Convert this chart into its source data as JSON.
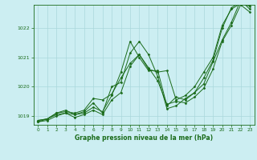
{
  "title": "Graphe pression niveau de la mer (hPa)",
  "bg_color": "#cceef2",
  "grid_color": "#aad8dc",
  "line_color": "#1a6b1a",
  "marker_color": "#1a6b1a",
  "xlim": [
    -0.5,
    23.5
  ],
  "ylim": [
    1018.7,
    1022.8
  ],
  "xticks": [
    0,
    1,
    2,
    3,
    4,
    5,
    6,
    7,
    8,
    9,
    10,
    11,
    12,
    13,
    14,
    15,
    16,
    17,
    18,
    19,
    20,
    21,
    22,
    23
  ],
  "yticks": [
    1019,
    1020,
    1021,
    1022
  ],
  "series": [
    {
      "x": [
        0,
        1,
        2,
        3,
        4,
        5,
        6,
        7,
        8,
        9,
        10,
        11,
        12,
        13,
        14,
        15,
        16,
        17,
        18,
        19,
        20,
        21,
        22,
        23
      ],
      "y": [
        1018.8,
        1018.9,
        1019.05,
        1019.1,
        1019.05,
        1019.1,
        1019.3,
        1019.15,
        1019.7,
        1020.5,
        1021.55,
        1021.0,
        1020.55,
        1020.55,
        1019.35,
        1019.65,
        1019.55,
        1019.8,
        1020.3,
        1020.9,
        1022.0,
        1022.7,
        1022.9,
        1022.8
      ]
    },
    {
      "x": [
        0,
        1,
        2,
        3,
        4,
        5,
        6,
        7,
        8,
        9,
        10,
        11,
        12,
        13,
        14,
        15,
        16,
        17,
        18,
        19,
        20,
        21,
        22,
        23
      ],
      "y": [
        1018.85,
        1018.9,
        1019.1,
        1019.15,
        1019.1,
        1019.2,
        1019.6,
        1019.55,
        1019.75,
        1020.3,
        1020.8,
        1021.1,
        1020.6,
        1020.5,
        1020.55,
        1019.55,
        1019.7,
        1020.0,
        1020.5,
        1021.0,
        1022.1,
        1022.65,
        1022.85,
        1022.75
      ]
    },
    {
      "x": [
        0,
        1,
        2,
        3,
        4,
        5,
        6,
        7,
        8,
        9,
        10,
        11,
        12,
        13,
        14,
        15,
        16,
        17,
        18,
        19,
        20,
        21,
        22,
        23
      ],
      "y": [
        1018.85,
        1018.9,
        1019.1,
        1019.2,
        1019.05,
        1019.15,
        1019.45,
        1019.1,
        1020.0,
        1020.15,
        1021.15,
        1021.55,
        1021.1,
        1020.35,
        1019.25,
        1019.35,
        1019.6,
        1019.8,
        1020.1,
        1020.85,
        1021.6,
        1022.2,
        1022.95,
        1022.65
      ]
    },
    {
      "x": [
        0,
        1,
        2,
        3,
        4,
        5,
        6,
        7,
        8,
        9,
        10,
        11,
        12,
        13,
        14,
        15,
        16,
        17,
        18,
        19,
        20,
        21,
        22,
        23
      ],
      "y": [
        1018.8,
        1018.85,
        1019.0,
        1019.1,
        1018.95,
        1019.05,
        1019.2,
        1019.05,
        1019.55,
        1019.8,
        1020.7,
        1021.1,
        1020.65,
        1020.2,
        1019.4,
        1019.5,
        1019.45,
        1019.65,
        1019.95,
        1020.6,
        1021.55,
        1022.1,
        1022.8,
        1022.55
      ]
    }
  ]
}
